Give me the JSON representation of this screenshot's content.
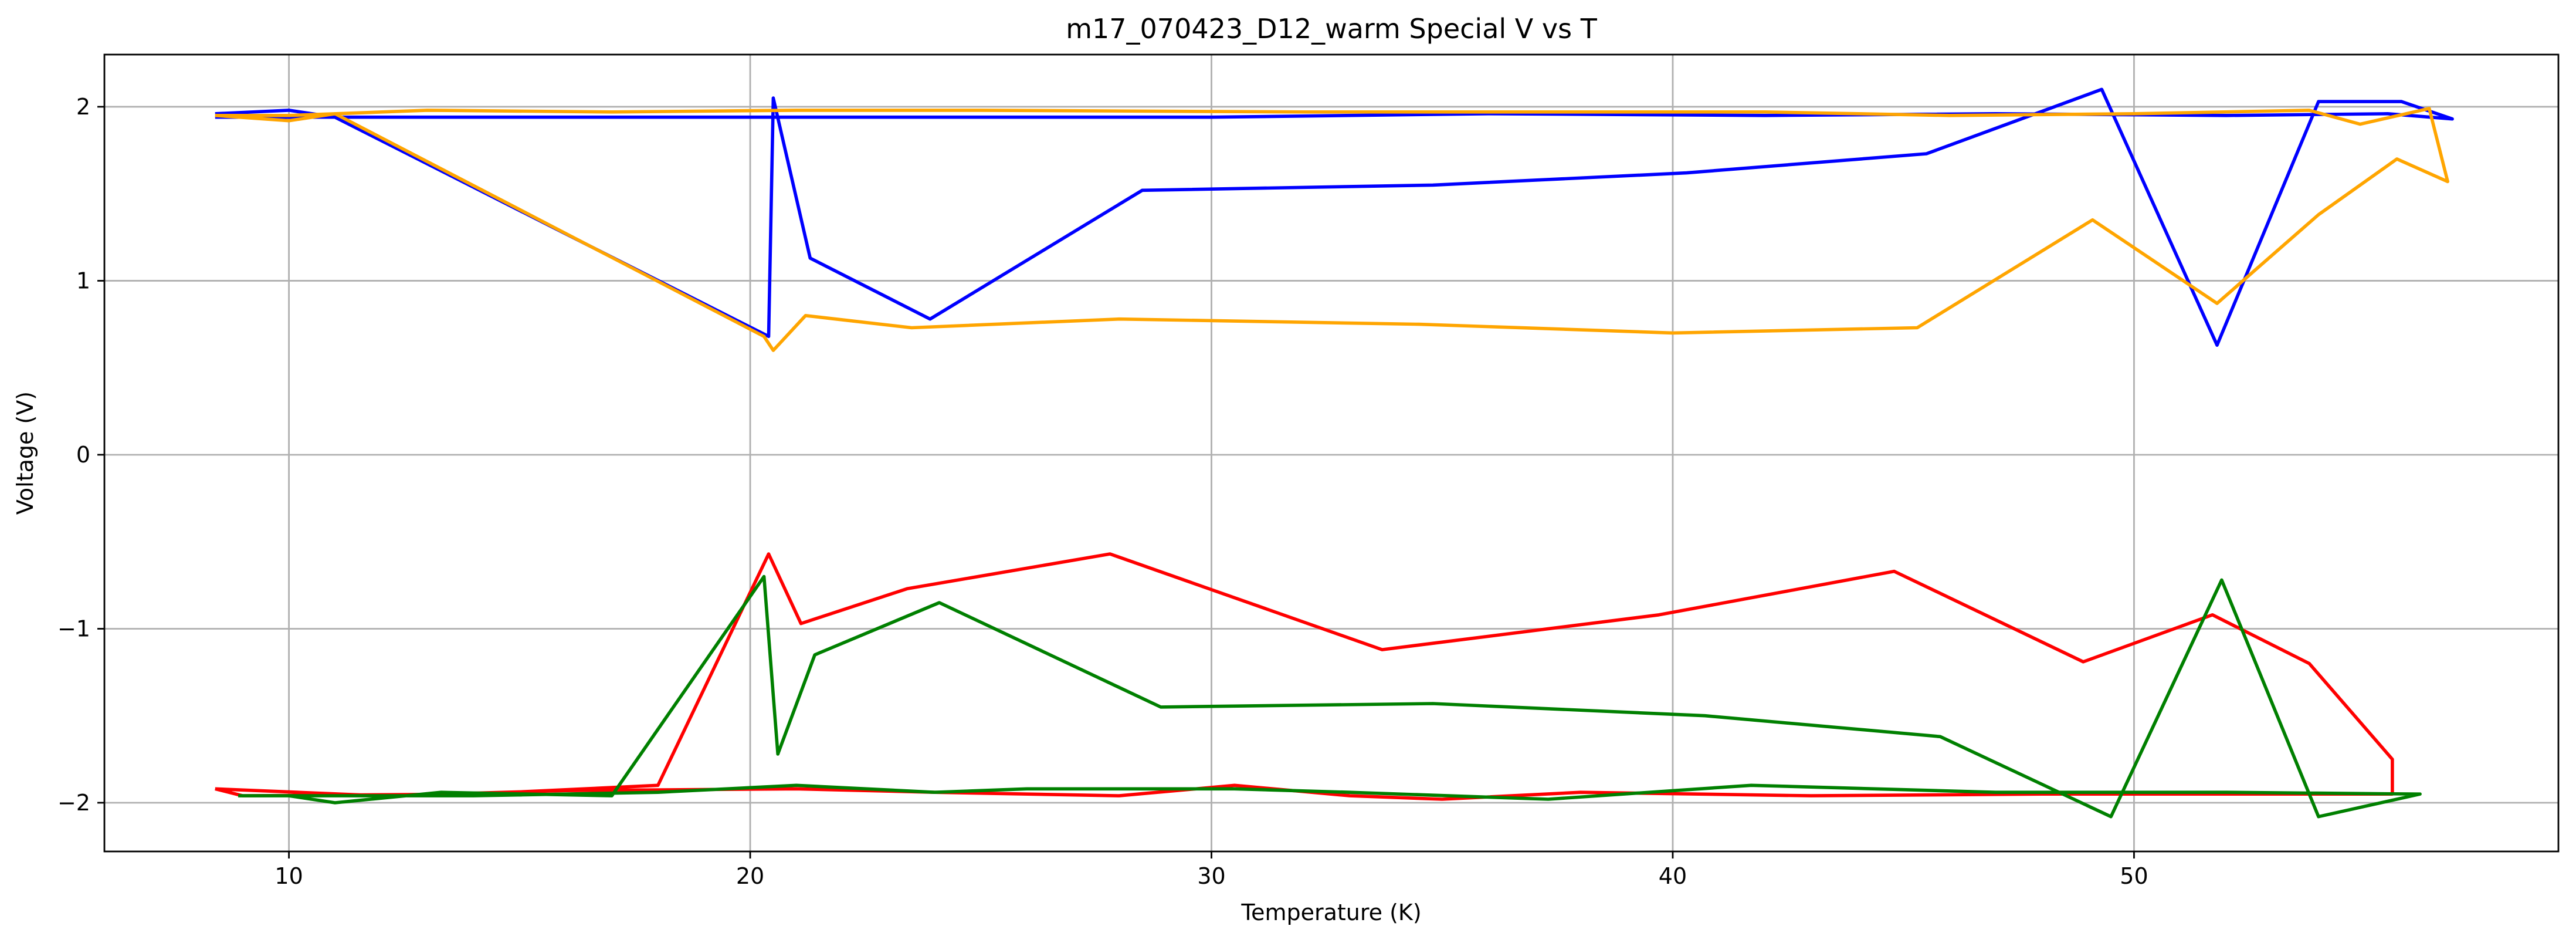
{
  "chart_data": {
    "type": "line",
    "title": "m17_070423_D12_warm Special V vs T",
    "xlabel": "Temperature (K)",
    "ylabel": "Voltage (V)",
    "xlim": [
      6.0,
      59.2
    ],
    "ylim": [
      -2.28,
      2.3
    ],
    "xticks": [
      10,
      20,
      30,
      40,
      50
    ],
    "yticks": [
      -2,
      -1,
      0,
      1,
      2
    ],
    "xtick_labels": [
      "10",
      "20",
      "30",
      "40",
      "50"
    ],
    "ytick_labels": [
      "−2",
      "−1",
      "0",
      "1",
      "2"
    ],
    "grid": true,
    "legend": "none",
    "series": [
      {
        "color": "#0000ff",
        "x": [
          8.4,
          10.0,
          11.0,
          20.4,
          20.5,
          21.3,
          23.9,
          28.5,
          34.8,
          40.3,
          45.5,
          49.3,
          51.8,
          54.0,
          55.8,
          56.9,
          55.5,
          52.0,
          47.0,
          42.0,
          36.0,
          30.0,
          24.0,
          20.6,
          16.0,
          12.0,
          10.0,
          8.4
        ],
        "y": [
          1.96,
          1.98,
          1.94,
          0.68,
          2.05,
          1.13,
          0.78,
          1.52,
          1.55,
          1.62,
          1.73,
          2.1,
          0.63,
          2.03,
          2.03,
          1.93,
          1.96,
          1.95,
          1.96,
          1.95,
          1.96,
          1.94,
          1.94,
          1.94,
          1.94,
          1.94,
          1.94,
          1.94
        ]
      },
      {
        "color": "#ffa500",
        "x": [
          8.4,
          10.0,
          11.0,
          20.3,
          20.5,
          21.2,
          23.5,
          28.0,
          34.5,
          40.0,
          45.3,
          49.1,
          51.8,
          54.0,
          55.7,
          56.8,
          56.4,
          54.9,
          53.8,
          50.0,
          46.0,
          42.0,
          37.0,
          32.0,
          25.0,
          21.0,
          17.0,
          13.0,
          10.0,
          8.4
        ],
        "y": [
          1.95,
          1.92,
          1.96,
          0.68,
          0.6,
          0.8,
          0.73,
          0.78,
          0.75,
          0.7,
          0.73,
          1.35,
          0.87,
          1.38,
          1.7,
          1.57,
          1.99,
          1.9,
          1.98,
          1.96,
          1.95,
          1.97,
          1.97,
          1.97,
          1.98,
          1.98,
          1.97,
          1.98,
          1.95,
          1.95
        ]
      },
      {
        "color": "#ff0000",
        "x": [
          8.4,
          9.0,
          14.0,
          18.0,
          20.4,
          21.1,
          23.4,
          27.8,
          33.7,
          39.7,
          44.8,
          48.9,
          51.7,
          53.8,
          55.6,
          55.6,
          48.0,
          43.0,
          38.0,
          35.0,
          33.0,
          30.5,
          28.0,
          24.0,
          21.0,
          16.0,
          12.0,
          8.4
        ],
        "y": [
          -1.92,
          -1.96,
          -1.95,
          -1.9,
          -0.57,
          -0.97,
          -0.77,
          -0.57,
          -1.12,
          -0.92,
          -0.67,
          -1.19,
          -0.92,
          -1.2,
          -1.75,
          -1.95,
          -1.95,
          -1.96,
          -1.94,
          -1.98,
          -1.96,
          -1.9,
          -1.96,
          -1.94,
          -1.92,
          -1.93,
          -1.96,
          -1.92
        ]
      },
      {
        "color": "#008000",
        "x": [
          8.9,
          10.0,
          11.0,
          13.3,
          17.0,
          20.3,
          20.6,
          21.4,
          24.1,
          28.9,
          34.8,
          40.7,
          45.8,
          49.5,
          51.9,
          54.0,
          56.2,
          52.0,
          47.0,
          41.7,
          37.3,
          33.0,
          30.5,
          26.0,
          24.0,
          21.0,
          18.0,
          14.0,
          10.0,
          8.9
        ],
        "y": [
          -1.96,
          -1.96,
          -2.0,
          -1.94,
          -1.96,
          -0.7,
          -1.72,
          -1.15,
          -0.85,
          -1.45,
          -1.43,
          -1.5,
          -1.62,
          -2.08,
          -0.72,
          -2.08,
          -1.95,
          -1.94,
          -1.94,
          -1.9,
          -1.98,
          -1.94,
          -1.92,
          -1.92,
          -1.94,
          -1.9,
          -1.94,
          -1.96,
          -1.96,
          -1.96
        ]
      }
    ]
  }
}
